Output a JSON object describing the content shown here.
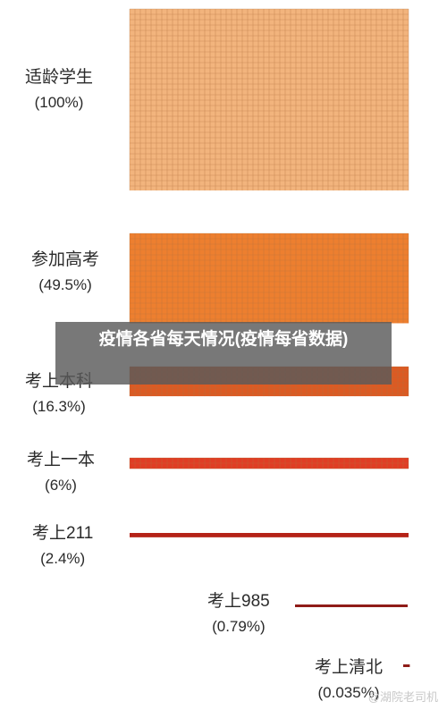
{
  "chart_data": {
    "type": "bar",
    "categories": [
      "适龄学生",
      "参加高考",
      "考上本科",
      "考上一本",
      "考上211",
      "考上985",
      "考上清北"
    ],
    "values": [
      100,
      49.5,
      16.3,
      6,
      2.4,
      0.79,
      0.035
    ],
    "value_labels": [
      "(100%)",
      "(49.5%)",
      "(16.3%)",
      "(6%)",
      "(2.4%)",
      "(0.79%)",
      "(0.035%)"
    ],
    "colors": [
      "#f2b47d",
      "#ed7f2f",
      "#dc5a23",
      "#e03d24",
      "#b52318",
      "#8f1c18",
      "#8f1c18"
    ],
    "grid_color": "#b3733f"
  },
  "overlay_text": "疫情各省每天情况(疫情每省数据)",
  "watermark": "@湖院老司机"
}
